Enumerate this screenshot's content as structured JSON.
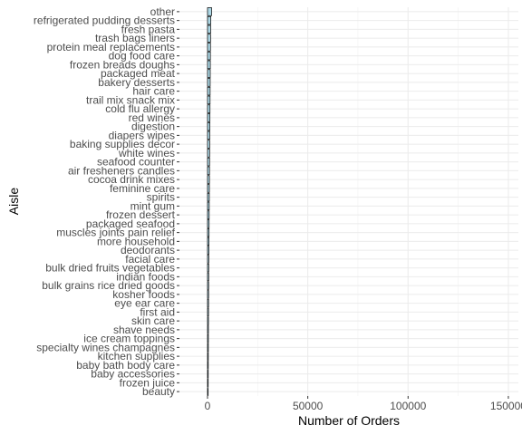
{
  "chart_data": {
    "type": "bar",
    "orientation": "horizontal",
    "xlabel": "Number of Orders",
    "ylabel": "Aisle",
    "xlim": [
      -14000,
      155000
    ],
    "xticks": [
      0,
      50000,
      100000,
      150000
    ],
    "xtick_labels": [
      "0",
      "50000",
      "100000",
      "150000"
    ],
    "grid": true,
    "bar_color": "#add8e6",
    "bar_outline": "#000000",
    "categories": [
      "other",
      "refrigerated pudding desserts",
      "fresh pasta",
      "trash bags liners",
      "protein meal replacements",
      "dog food care",
      "frozen breads doughs",
      "packaged meat",
      "bakery desserts",
      "hair care",
      "trail mix snack mix",
      "cold flu allergy",
      "red wines",
      "digestion",
      "diapers wipes",
      "baking supplies decor",
      "white wines",
      "seafood counter",
      "air fresheners candles",
      "cocoa drink mixes",
      "feminine care",
      "spirits",
      "mint gum",
      "frozen dessert",
      "packaged seafood",
      "muscles joints pain relief",
      "more household",
      "deodorants",
      "facial care",
      "bulk dried fruits vegetables",
      "indian foods",
      "bulk grains rice dried goods",
      "kosher foods",
      "eye ear care",
      "first aid",
      "skin care",
      "shave needs",
      "ice cream toppings",
      "specialty wines champagnes",
      "kitchen supplies",
      "baby bath body care",
      "baby accessories",
      "frozen juice",
      "beauty"
    ],
    "values": [
      2050,
      1620,
      1560,
      1510,
      1470,
      1430,
      1400,
      1370,
      1340,
      1310,
      1280,
      1250,
      1220,
      1190,
      1120,
      1080,
      1050,
      1020,
      990,
      960,
      930,
      900,
      870,
      840,
      810,
      780,
      750,
      720,
      620,
      600,
      580,
      560,
      540,
      520,
      500,
      480,
      460,
      440,
      420,
      400,
      380,
      360,
      340,
      320
    ]
  }
}
